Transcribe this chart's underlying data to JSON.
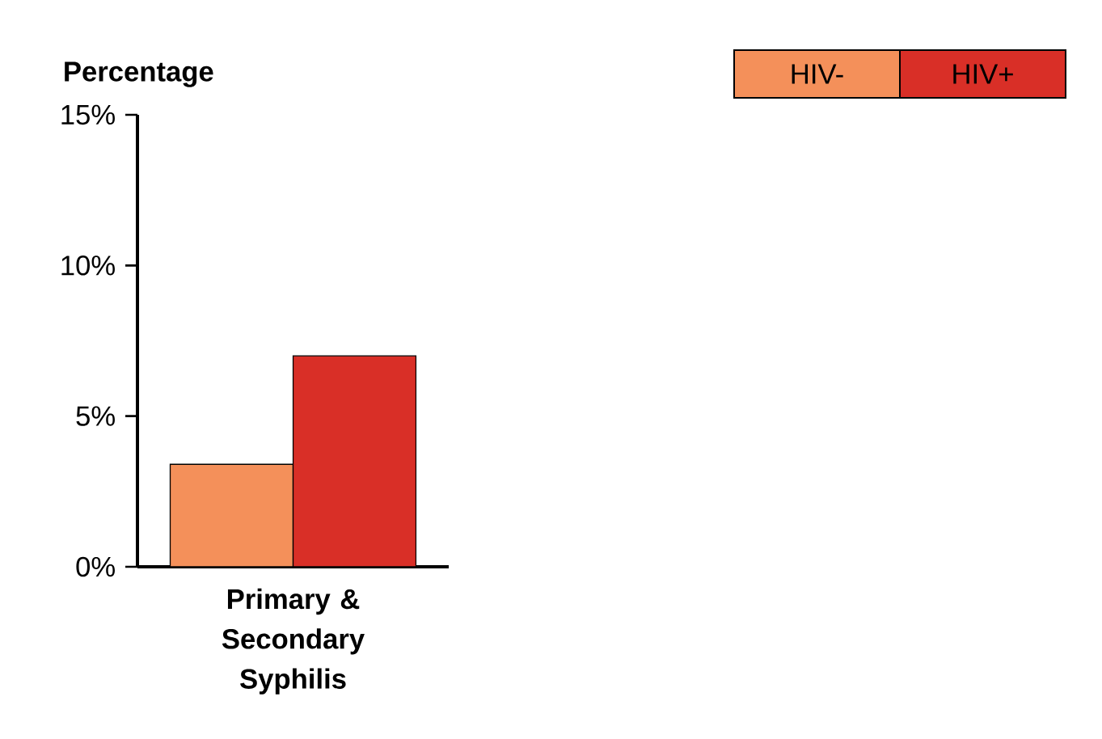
{
  "chart_data": {
    "type": "bar",
    "ylabel": "Percentage",
    "categories": [
      "Primary & Secondary Syphilis"
    ],
    "series": [
      {
        "name": "HIV-",
        "color": "#f4905a",
        "values": [
          3.4
        ]
      },
      {
        "name": "HIV+",
        "color": "#d92f27",
        "values": [
          7.0
        ]
      }
    ],
    "ylim": [
      0,
      15
    ],
    "yticks": [
      {
        "value": 0,
        "label": "0%"
      },
      {
        "value": 5,
        "label": "5%"
      },
      {
        "value": 10,
        "label": "10%"
      },
      {
        "value": 15,
        "label": "15%"
      }
    ],
    "legend": "top right"
  }
}
